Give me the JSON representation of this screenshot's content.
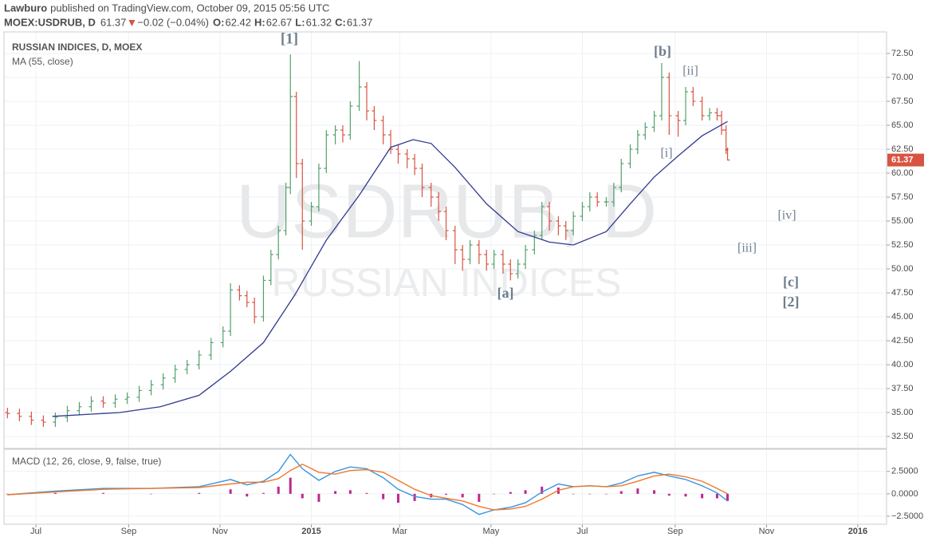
{
  "header": {
    "author": "Lawburo",
    "published": "published on TradingView.com, October 09, 2015 05:56 UTC",
    "symbol": "MOEX:USDRUB, D",
    "change": "−0.02 (−0.04%)",
    "ohlc_labels": [
      "O:",
      "H:",
      "L:",
      "C:"
    ]
  },
  "chart_data": {
    "type": "ohlc",
    "title": "RUSSIAN INDICES, D, MOEX",
    "watermark": {
      "symbol": "USDRUB, D",
      "name": "RUSSIAN INDICES"
    },
    "up_color": "#53a06a",
    "down_color": "#d75442",
    "x": [
      -19,
      -11,
      -3,
      5,
      13,
      21,
      29,
      37,
      45,
      53,
      61,
      69,
      77,
      85,
      93,
      101,
      109,
      117,
      125,
      130,
      136,
      141,
      146,
      152,
      157,
      162,
      167,
      170,
      174,
      178,
      184,
      189,
      194,
      200,
      205,
      210,
      216,
      221,
      226,
      232,
      237,
      242,
      248,
      253,
      258,
      264,
      269,
      274,
      280,
      285,
      290,
      296,
      301,
      306,
      312,
      317,
      322,
      327,
      333,
      338,
      343,
      349,
      354,
      359,
      365,
      370,
      375,
      381,
      386,
      391,
      397,
      402,
      407,
      413,
      418,
      423,
      429,
      434,
      439,
      445,
      450,
      455,
      458,
      461,
      462
    ],
    "open": [
      35.0,
      34.9,
      34.6,
      34.2,
      34.0,
      34.5,
      35.2,
      35.6,
      36.2,
      36.0,
      36.4,
      36.6,
      37.3,
      37.9,
      38.6,
      39.5,
      40.0,
      41.0,
      42.3,
      43.5,
      47.8,
      47.2,
      46.5,
      45.0,
      48.8,
      51.5,
      54.0,
      58.5,
      68.0,
      61.0,
      55.0,
      56.5,
      60.5,
      64.0,
      64.5,
      64.0,
      67.0,
      69.0,
      66.5,
      65.5,
      64.0,
      62.5,
      62.0,
      61.5,
      60.5,
      58.5,
      57.5,
      56.0,
      54.0,
      52.0,
      51.0,
      52.5,
      51.5,
      50.5,
      51.5,
      50.5,
      49.5,
      50.5,
      52.0,
      53.5,
      56.5,
      55.0,
      54.5,
      54.0,
      55.5,
      56.5,
      57.5,
      57.0,
      57.0,
      58.5,
      61.0,
      62.5,
      64.0,
      64.8,
      66.0,
      70.0,
      66.0,
      65.5,
      68.5,
      67.5,
      66.0,
      66.3,
      66.0,
      64.5,
      62.42
    ],
    "high": [
      35.5,
      35.4,
      35.1,
      34.7,
      35.0,
      35.7,
      36.1,
      36.7,
      36.7,
      36.9,
      37.1,
      37.8,
      38.4,
      39.1,
      40.0,
      40.5,
      41.5,
      42.8,
      44.0,
      48.5,
      48.3,
      47.7,
      47.0,
      49.3,
      52.0,
      54.5,
      59.0,
      72.4,
      68.5,
      61.5,
      57.0,
      61.0,
      64.5,
      65.0,
      65.0,
      67.5,
      71.7,
      69.5,
      67.0,
      66.0,
      64.5,
      63.0,
      62.5,
      62.0,
      61.0,
      59.0,
      58.0,
      56.5,
      54.5,
      52.5,
      53.0,
      53.0,
      52.0,
      52.0,
      52.0,
      51.0,
      51.0,
      52.5,
      54.0,
      57.0,
      57.0,
      55.5,
      55.0,
      56.0,
      57.0,
      58.0,
      58.0,
      57.5,
      59.0,
      61.5,
      63.0,
      64.5,
      65.3,
      66.5,
      71.5,
      70.5,
      66.5,
      69.0,
      69.0,
      68.0,
      66.8,
      66.8,
      66.5,
      65.0,
      62.67
    ],
    "low": [
      34.4,
      34.1,
      33.7,
      33.5,
      33.5,
      34.0,
      34.7,
      35.1,
      35.5,
      35.5,
      35.9,
      36.1,
      36.8,
      37.4,
      38.1,
      39.0,
      39.5,
      40.5,
      41.8,
      43.0,
      46.7,
      46.0,
      44.3,
      44.5,
      48.3,
      51.0,
      53.5,
      57.8,
      59.5,
      52.0,
      54.5,
      56.0,
      60.0,
      63.0,
      63.2,
      63.5,
      66.5,
      65.5,
      64.5,
      63.0,
      62.0,
      61.0,
      60.5,
      59.8,
      57.5,
      56.5,
      55.0,
      53.0,
      50.5,
      49.8,
      50.5,
      50.5,
      49.8,
      50.0,
      49.5,
      48.8,
      49.0,
      50.0,
      51.5,
      53.0,
      54.0,
      53.5,
      53.0,
      53.5,
      55.0,
      56.0,
      56.5,
      56.5,
      56.5,
      58.0,
      60.5,
      62.0,
      63.5,
      64.3,
      65.5,
      64.0,
      63.8,
      65.0,
      67.0,
      65.5,
      65.5,
      65.5,
      64.0,
      62.0,
      61.32
    ],
    "close": [
      34.9,
      34.6,
      34.2,
      34.0,
      34.5,
      35.2,
      35.6,
      36.2,
      36.0,
      36.4,
      36.6,
      37.3,
      37.9,
      38.6,
      39.5,
      40.0,
      41.0,
      42.3,
      43.5,
      47.8,
      47.2,
      46.5,
      45.0,
      48.8,
      51.5,
      54.0,
      58.5,
      68.0,
      61.0,
      55.0,
      56.5,
      60.5,
      64.0,
      64.5,
      64.0,
      67.0,
      69.0,
      66.5,
      65.5,
      64.0,
      62.5,
      62.0,
      61.5,
      60.5,
      58.5,
      57.5,
      56.0,
      54.0,
      52.0,
      51.0,
      52.5,
      51.5,
      50.5,
      51.5,
      50.5,
      49.5,
      50.5,
      52.0,
      53.5,
      56.5,
      55.0,
      54.5,
      54.0,
      55.5,
      56.5,
      57.5,
      57.0,
      57.0,
      58.5,
      61.0,
      62.5,
      64.0,
      64.8,
      66.0,
      70.0,
      66.0,
      65.5,
      68.5,
      67.5,
      66.0,
      66.3,
      66.0,
      64.5,
      62.5,
      61.37
    ],
    "ma": {
      "name": "MA (55, close)",
      "color": "#2f3a8f",
      "x": [
        11,
        56,
        83,
        109,
        130,
        152,
        173,
        194,
        216,
        237,
        252,
        264,
        280,
        301,
        322,
        343,
        359,
        381,
        397,
        413,
        429,
        445,
        462
      ],
      "values": [
        34.6,
        35.0,
        35.6,
        36.8,
        39.3,
        42.3,
        47.3,
        53.0,
        57.7,
        62.7,
        63.5,
        63.1,
        60.6,
        56.8,
        53.9,
        52.8,
        52.5,
        53.9,
        56.8,
        59.6,
        61.8,
        63.9,
        65.4
      ]
    },
    "xlim": [
      -21.3,
      568.2
    ],
    "xticks": [
      {
        "value": 0,
        "label": "Jul"
      },
      {
        "value": 62,
        "label": "Sep"
      },
      {
        "value": 123,
        "label": "Nov"
      },
      {
        "value": 184,
        "label": "2015"
      },
      {
        "value": 243,
        "label": "Mar"
      },
      {
        "value": 304,
        "label": "May"
      },
      {
        "value": 365,
        "label": "Jul"
      },
      {
        "value": 427,
        "label": "Sep"
      },
      {
        "value": 488,
        "label": "Nov"
      },
      {
        "value": 549,
        "label": "2016"
      }
    ],
    "ylim": [
      31.25,
      74.75
    ],
    "yticks": [
      {
        "value": 32.5,
        "label": "32.50"
      },
      {
        "value": 35,
        "label": "35.00"
      },
      {
        "value": 37.5,
        "label": "37.50"
      },
      {
        "value": 40,
        "label": "40.00"
      },
      {
        "value": 42.5,
        "label": "42.50"
      },
      {
        "value": 45,
        "label": "45.00"
      },
      {
        "value": 47.5,
        "label": "47.50"
      },
      {
        "value": 50,
        "label": "50.00"
      },
      {
        "value": 52.5,
        "label": "52.50"
      },
      {
        "value": 55,
        "label": "55.00"
      },
      {
        "value": 57.5,
        "label": "57.50"
      },
      {
        "value": 60,
        "label": "60.00"
      },
      {
        "value": 62.5,
        "label": "62.50"
      },
      {
        "value": 65,
        "label": "65.00"
      },
      {
        "value": 67.5,
        "label": "67.50"
      },
      {
        "value": 70,
        "label": "70.00"
      },
      {
        "value": 72.5,
        "label": "72.50"
      }
    ],
    "grid": true,
    "annotations": [
      "[1]",
      "[b]",
      "[ii]",
      "[i]",
      "[a]",
      "[iv]",
      "[iii]",
      "[c]",
      "[2]"
    ],
    "macd": {
      "title": "MACD (12, 26, close, 9, false, true)",
      "x": [
        -19,
        13,
        45,
        77,
        109,
        130,
        141,
        152,
        162,
        170,
        178,
        189,
        200,
        210,
        221,
        232,
        242,
        253,
        264,
        274,
        285,
        296,
        306,
        317,
        327,
        338,
        349,
        359,
        370,
        381,
        391,
        402,
        413,
        423,
        434,
        445,
        455,
        462
      ],
      "series": [
        {
          "color": "#3a95e0",
          "values": [
            -0.1,
            0.3,
            0.6,
            0.6,
            0.8,
            1.6,
            1.0,
            1.4,
            2.5,
            4.4,
            2.8,
            1.5,
            2.5,
            3.0,
            2.8,
            1.8,
            0.5,
            -0.3,
            -0.6,
            -0.6,
            -1.2,
            -2.3,
            -1.8,
            -1.5,
            -1.0,
            0.2,
            1.1,
            0.8,
            0.9,
            0.8,
            1.2,
            2.0,
            2.4,
            2.0,
            1.6,
            0.9,
            0.1,
            -0.8
          ]
        },
        {
          "color": "#f0782a",
          "values": [
            -0.1,
            0.2,
            0.5,
            0.6,
            0.7,
            1.1,
            1.3,
            1.3,
            1.7,
            2.6,
            3.3,
            2.4,
            2.2,
            2.6,
            2.7,
            2.4,
            1.5,
            0.5,
            -0.2,
            -0.5,
            -0.8,
            -1.4,
            -1.8,
            -1.7,
            -1.4,
            -0.6,
            0.4,
            0.8,
            0.9,
            0.8,
            0.9,
            1.4,
            2.0,
            2.2,
            1.9,
            1.4,
            0.6,
            0.0
          ]
        }
      ],
      "histogram": {
        "color": "#c0268c",
        "values": [
          0.0,
          0.1,
          0.1,
          0.0,
          0.1,
          0.5,
          -0.3,
          0.1,
          0.8,
          1.8,
          -0.5,
          -0.9,
          0.3,
          0.4,
          0.1,
          -0.6,
          -1.0,
          -0.8,
          -0.4,
          -0.1,
          -0.4,
          -0.9,
          0.0,
          0.2,
          0.4,
          0.8,
          0.7,
          0.0,
          0.0,
          0.0,
          0.3,
          0.6,
          0.4,
          -0.2,
          -0.3,
          -0.5,
          -0.5,
          -0.8
        ]
      },
      "ylim": [
        -3.4,
        4.8
      ],
      "yticks": [
        {
          "value": 2.5,
          "label": "2.5000"
        },
        {
          "value": 0,
          "label": "0.0000"
        },
        {
          "value": -2.5,
          "label": "−2.5000"
        }
      ]
    }
  }
}
